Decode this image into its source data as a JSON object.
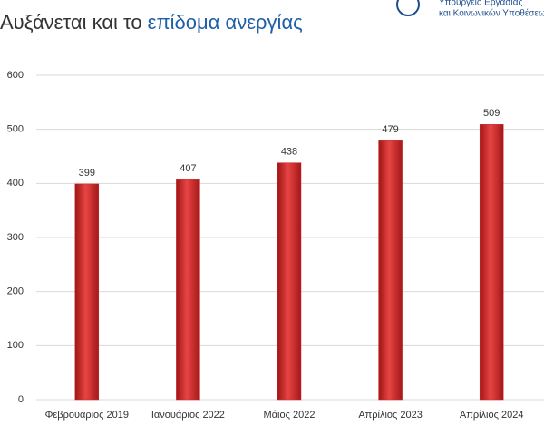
{
  "chart_data": {
    "type": "bar",
    "title": "Αυξάνεται και το",
    "title_highlight": "επίδομα ανεργίας",
    "ministry": [
      "Υπουργείο Εργασίας",
      "και Κοινωνικών Υποθέσεων"
    ],
    "categories": [
      "Φεβρουάριος 2019",
      "Ιανουάριος 2022",
      "Μάιος 2022",
      "Απρίλιος 2023",
      "Απρίλιος 2024"
    ],
    "values": [
      399,
      407,
      438,
      479,
      509
    ],
    "color": "#d42a2a",
    "ylim": [
      0,
      600
    ],
    "yticks": [
      0,
      100,
      200,
      300,
      400,
      500,
      600
    ],
    "grid": true
  }
}
